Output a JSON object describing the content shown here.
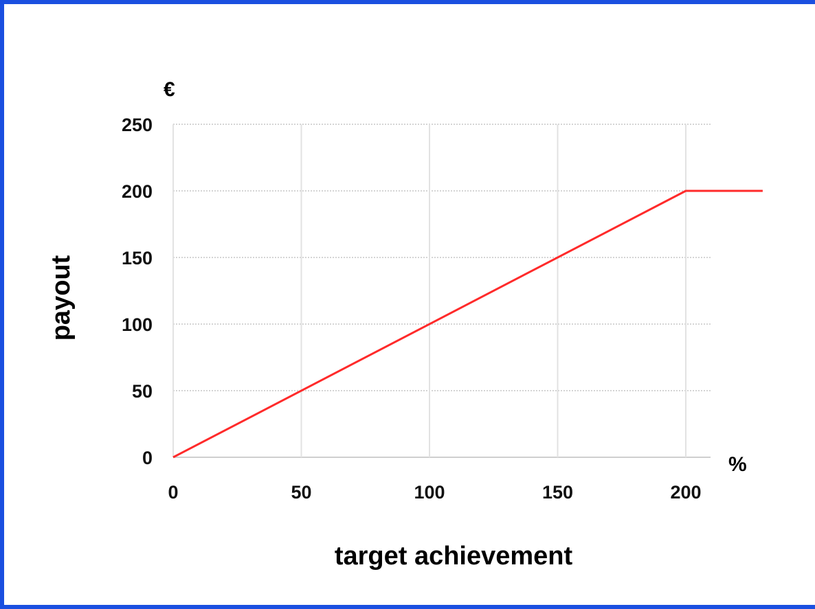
{
  "chart_data": {
    "type": "line",
    "title": "",
    "xlabel": "target achievement",
    "ylabel": "payout",
    "x_unit": "%",
    "y_unit": "€",
    "xlim": [
      0,
      230
    ],
    "ylim": [
      0,
      250
    ],
    "x_ticks": [
      0,
      50,
      100,
      150,
      200
    ],
    "y_ticks": [
      0,
      50,
      100,
      150,
      200,
      250
    ],
    "grid": true,
    "series": [
      {
        "color": "#ff2a2a",
        "x": [
          0,
          200,
          230
        ],
        "y": [
          0,
          200,
          200
        ]
      }
    ]
  }
}
